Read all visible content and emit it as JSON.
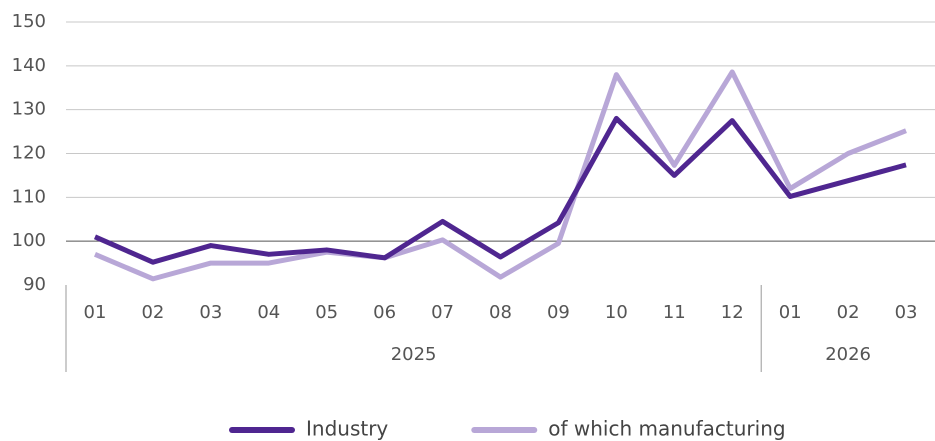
{
  "chart_data": {
    "type": "line",
    "category_groups": [
      {
        "name": "2025",
        "categories": [
          "01",
          "02",
          "03",
          "04",
          "05",
          "06",
          "07",
          "08",
          "09",
          "10",
          "11",
          "12"
        ]
      },
      {
        "name": "2026",
        "categories": [
          "01",
          "02",
          "03"
        ]
      }
    ],
    "series": [
      {
        "name": "Industry",
        "color": "#4f2690",
        "values": [
          101,
          95.2,
          99,
          97,
          98,
          96.2,
          104.5,
          96.4,
          104.2,
          128,
          115,
          127.5,
          110.2,
          113.8,
          117.4
        ]
      },
      {
        "name": "of which manufacturing",
        "color": "#b8a7d7",
        "values": [
          97,
          91.4,
          95,
          95,
          97.5,
          96.2,
          100.3,
          91.8,
          99.5,
          138,
          117.3,
          138.6,
          112,
          120,
          125.2
        ]
      }
    ],
    "ylim": [
      90,
      150
    ],
    "yticks": [
      90,
      100,
      110,
      120,
      130,
      140,
      150
    ],
    "grid": true
  }
}
